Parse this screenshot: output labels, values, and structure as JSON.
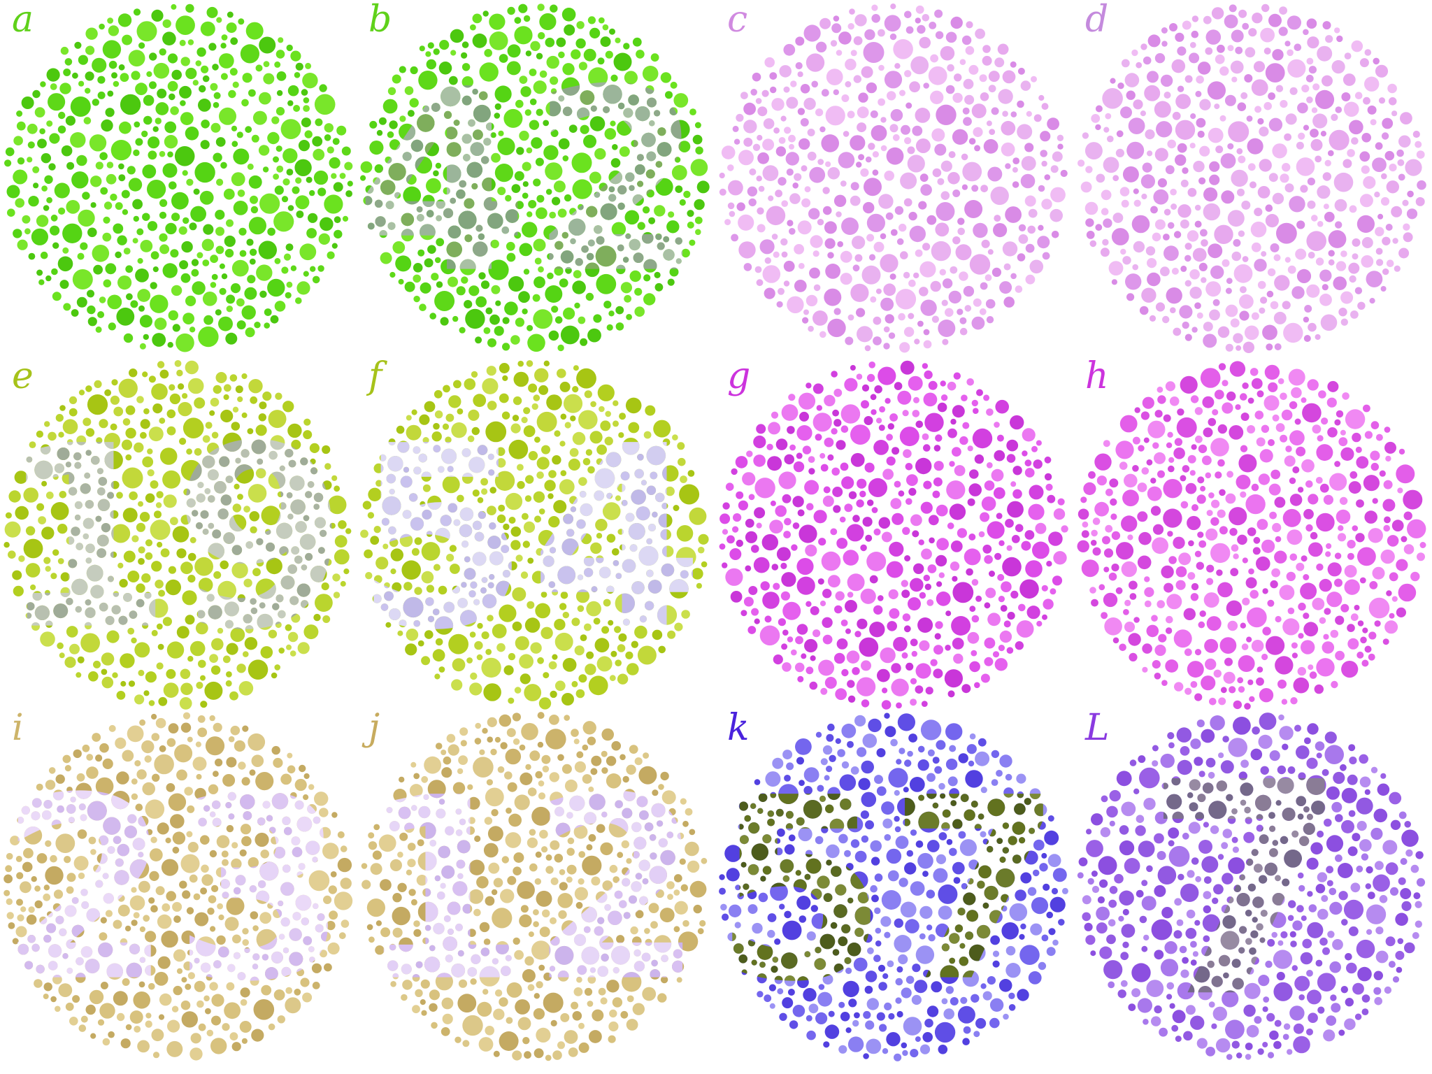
{
  "plates": [
    {
      "letter": "a",
      "letter_color": "#5fd11a",
      "bg": [
        "#55d414",
        "#6be21f",
        "#4cc80f",
        "#79e62a",
        "#5ed818"
      ],
      "figure": "",
      "fig": []
    },
    {
      "letter": "b",
      "letter_color": "#5fd11a",
      "bg": [
        "#55d414",
        "#6be21f",
        "#4cc80f",
        "#79e62a",
        "#5ed818"
      ],
      "figure": "42",
      "fig": [
        "#8ea88a",
        "#9bb59a",
        "#82a57e",
        "#a9c0a4",
        "#7fae5c"
      ]
    },
    {
      "letter": "c",
      "letter_color": "#d08ae0",
      "bg": [
        "#e7a9ee",
        "#dd97ea",
        "#f0bcf4",
        "#d98be6",
        "#e9b2f0"
      ],
      "figure": "",
      "fig": []
    },
    {
      "letter": "d",
      "letter_color": "#c48add",
      "bg": [
        "#e7a9ee",
        "#dd97ea",
        "#f0bcf4",
        "#d98be6",
        "#e9b2f0"
      ],
      "figure": "",
      "fig": []
    },
    {
      "letter": "e",
      "letter_color": "#a6c21a",
      "bg": [
        "#b3cf20",
        "#c2d83a",
        "#a7c514",
        "#cadf4c",
        "#bad52e"
      ],
      "figure": "19",
      "fig": [
        "#b8c0b0",
        "#a9b3a2",
        "#c5ccbe",
        "#9fab98"
      ]
    },
    {
      "letter": "f",
      "letter_color": "#a6c21a",
      "bg": [
        "#b3cf20",
        "#c2d83a",
        "#a7c514",
        "#cadf4c",
        "#bad52e"
      ],
      "figure": "54",
      "fig": [
        "#d2cdf0",
        "#c9c2ee",
        "#dcd8f4",
        "#c0b9e8"
      ]
    },
    {
      "letter": "g",
      "letter_color": "#cc33dd",
      "bg": [
        "#dc4ce8",
        "#e560ee",
        "#d240e0",
        "#eb78f1",
        "#c936d9"
      ],
      "figure": "",
      "fig": []
    },
    {
      "letter": "h",
      "letter_color": "#cc33dd",
      "bg": [
        "#e35ee9",
        "#eb74f0",
        "#da4fe3",
        "#f089f3",
        "#d447de"
      ],
      "figure": "",
      "fig": []
    },
    {
      "letter": "i",
      "letter_color": "#cdb46a",
      "bg": [
        "#d8c27e",
        "#ccb36b",
        "#e2cf93",
        "#c4aa62",
        "#dcc889"
      ],
      "figure": "23",
      "fig": [
        "#dcc6f2",
        "#e6d4f7",
        "#d2b9ee",
        "#ead9f8"
      ]
    },
    {
      "letter": "j",
      "letter_color": "#c7ab5e",
      "bg": [
        "#d8c27e",
        "#ccb36b",
        "#e2cf93",
        "#c4aa62",
        "#dcc889"
      ],
      "figure": "12",
      "fig": [
        "#d8c0f2",
        "#e2cff6",
        "#ccb4ec",
        "#e6d6f7"
      ]
    },
    {
      "letter": "k",
      "letter_color": "#4a22dd",
      "bg": [
        "#7466ee",
        "#5f4ee6",
        "#8a7ff2",
        "#5240e0",
        "#9b92f4"
      ],
      "figure": "57",
      "fig": [
        "#5a6a22",
        "#6b7b2a",
        "#4d5c1c",
        "#7c8a36",
        "#62721f"
      ]
    },
    {
      "letter": "L",
      "letter_color": "#8a3ae0",
      "bg": [
        "#9a60e6",
        "#a878ec",
        "#8c4fe0",
        "#b68bf0",
        "#9259e2"
      ],
      "figure": "7",
      "fig": [
        "#8a7c96",
        "#7f7290",
        "#978aa2",
        "#74688a"
      ]
    }
  ]
}
